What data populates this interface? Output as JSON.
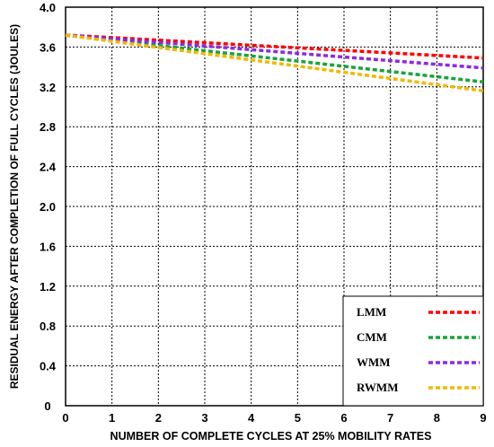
{
  "chart_data": {
    "type": "line",
    "xlabel": "NUMBER OF COMPLETE CYCLES AT 25% MOBILITY RATES",
    "ylabel": "RESIDUAL ENERGY AFTER COMPLETION OF FULL CYCLES (JOULES)",
    "xlim": [
      0,
      9
    ],
    "ylim": [
      0,
      4.0
    ],
    "x_ticks": [
      "0",
      "1",
      "2",
      "3",
      "4",
      "5",
      "6",
      "7",
      "8",
      "9"
    ],
    "y_ticks": [
      "0",
      "0.4",
      "0.8",
      "1.2",
      "1.6",
      "2.0",
      "2.4",
      "2.8",
      "3.2",
      "3.6",
      "4.0"
    ],
    "grid": true,
    "legend_position": "bottom-right",
    "x": [
      0,
      9
    ],
    "series": [
      {
        "name": "LMM",
        "color": "#ff0000",
        "values": [
          3.72,
          3.49
        ]
      },
      {
        "name": "CMM",
        "color": "#1aa33a",
        "values": [
          3.72,
          3.25
        ]
      },
      {
        "name": "WMM",
        "color": "#8a2be2",
        "values": [
          3.72,
          3.39
        ]
      },
      {
        "name": "RWMM",
        "color": "#f0b800",
        "values": [
          3.72,
          3.16
        ]
      }
    ]
  }
}
